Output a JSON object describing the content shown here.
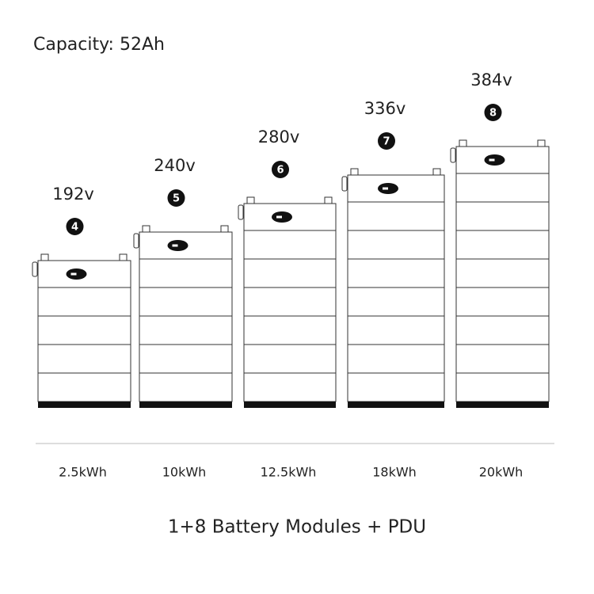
{
  "title": "Capacity: 52Ah",
  "stacks": [
    {
      "voltage": "192v",
      "modules": 4,
      "energy": "2.5kWh"
    },
    {
      "voltage": "240v",
      "modules": 5,
      "energy": "10kWh"
    },
    {
      "voltage": "280v",
      "modules": 6,
      "energy": "12.5kWh"
    },
    {
      "voltage": "336v",
      "modules": 7,
      "energy": "18kWh"
    },
    {
      "voltage": "384v",
      "modules": 8,
      "energy": "20kWh"
    }
  ],
  "footer": "1+8 Battery Modules + PDU"
}
